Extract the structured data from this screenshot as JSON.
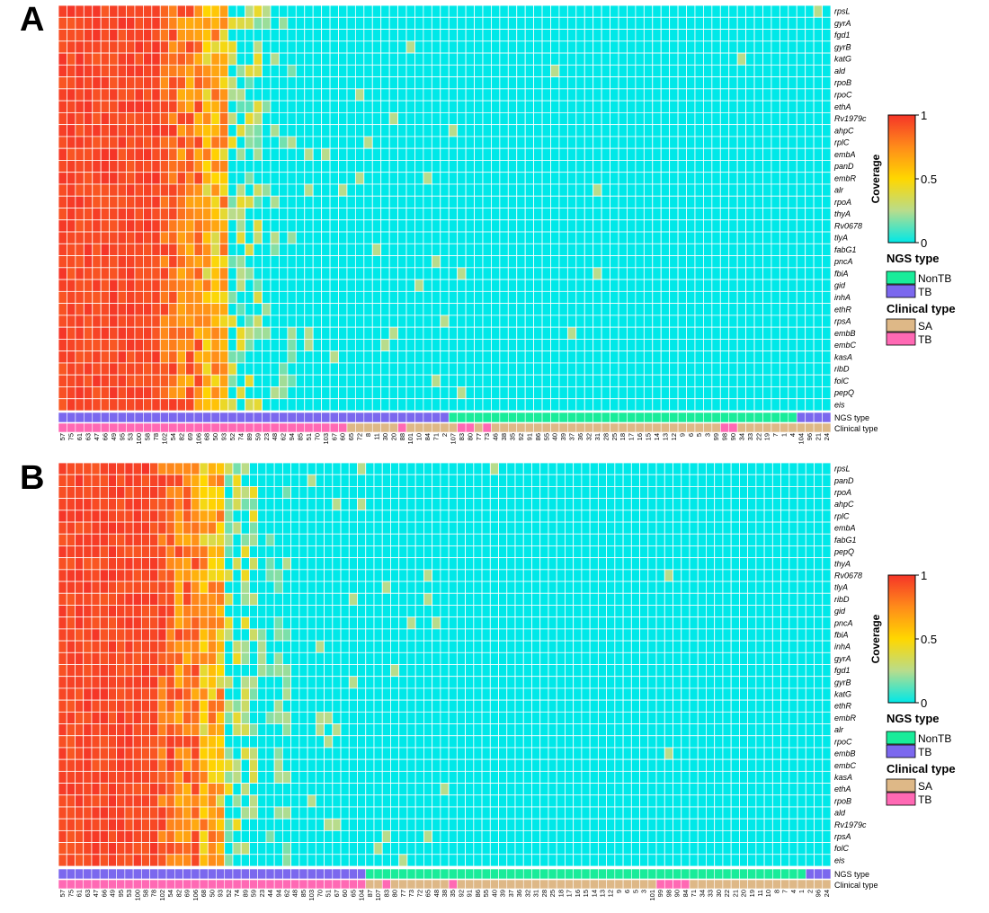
{
  "colors": {
    "coverage_gradient": [
      "#00e8e8",
      "#b8dc8c",
      "#ffd700",
      "#ff8c1a",
      "#f53528"
    ],
    "grid_line": "#ffffff",
    "track": {
      "NonTB": "#19ec9a",
      "TB": "#7b68ee",
      "SA": "#deb887",
      "ClinTB": "#ff69b4"
    }
  },
  "chart_data": [
    {
      "type": "heatmap",
      "panel": "A",
      "genes": [
        "rpsL",
        "gyrA",
        "fgd1",
        "gyrB",
        "katG",
        "ald",
        "rpoB",
        "rpoC",
        "ethA",
        "Rv1979c",
        "ahpC",
        "rplC",
        "embA",
        "panD",
        "embR",
        "alr",
        "rpoA",
        "thyA",
        "Rv0678",
        "tlyA",
        "fabG1",
        "pncA",
        "fbiA",
        "gid",
        "inhA",
        "ethR",
        "rpsA",
        "embB",
        "embC",
        "kasA",
        "ribD",
        "folC",
        "pepQ",
        "eis"
      ],
      "samples": [
        "57",
        "75",
        "61",
        "63",
        "47",
        "66",
        "49",
        "95",
        "53",
        "100",
        "58",
        "78",
        "102",
        "54",
        "82",
        "69",
        "106",
        "68",
        "50",
        "93",
        "52",
        "74",
        "89",
        "59",
        "23",
        "48",
        "62",
        "94",
        "85",
        "51",
        "70",
        "103",
        "67",
        "60",
        "65",
        "72",
        "8",
        "11",
        "30",
        "20",
        "88",
        "101",
        "10",
        "84",
        "71",
        "2",
        "107",
        "83",
        "80",
        "77",
        "73",
        "46",
        "38",
        "35",
        "92",
        "91",
        "86",
        "55",
        "40",
        "39",
        "37",
        "36",
        "32",
        "31",
        "28",
        "25",
        "18",
        "17",
        "16",
        "15",
        "14",
        "13",
        "12",
        "9",
        "6",
        "5",
        "3",
        "99",
        "98",
        "90",
        "34",
        "33",
        "22",
        "19",
        "7",
        "1",
        "4",
        "104",
        "96",
        "21",
        "24"
      ],
      "ngs_type": [
        "TB",
        "TB",
        "TB",
        "TB",
        "TB",
        "TB",
        "TB",
        "TB",
        "TB",
        "TB",
        "TB",
        "TB",
        "TB",
        "TB",
        "TB",
        "TB",
        "TB",
        "TB",
        "TB",
        "TB",
        "TB",
        "TB",
        "TB",
        "TB",
        "TB",
        "TB",
        "TB",
        "TB",
        "TB",
        "TB",
        "TB",
        "TB",
        "TB",
        "TB",
        "TB",
        "TB",
        "TB",
        "TB",
        "TB",
        "TB",
        "TB",
        "TB",
        "TB",
        "TB",
        "TB",
        "TB",
        "NonTB",
        "NonTB",
        "NonTB",
        "NonTB",
        "NonTB",
        "NonTB",
        "NonTB",
        "NonTB",
        "NonTB",
        "NonTB",
        "NonTB",
        "NonTB",
        "NonTB",
        "NonTB",
        "NonTB",
        "NonTB",
        "NonTB",
        "NonTB",
        "NonTB",
        "NonTB",
        "NonTB",
        "NonTB",
        "NonTB",
        "NonTB",
        "NonTB",
        "NonTB",
        "NonTB",
        "NonTB",
        "NonTB",
        "NonTB",
        "NonTB",
        "NonTB",
        "NonTB",
        "NonTB",
        "NonTB",
        "NonTB",
        "NonTB",
        "NonTB",
        "NonTB",
        "NonTB",
        "NonTB",
        "TB",
        "TB",
        "TB",
        "TB"
      ],
      "clinical_type": [
        "TB",
        "TB",
        "TB",
        "TB",
        "TB",
        "TB",
        "TB",
        "TB",
        "TB",
        "TB",
        "TB",
        "TB",
        "TB",
        "TB",
        "TB",
        "TB",
        "TB",
        "TB",
        "TB",
        "TB",
        "TB",
        "TB",
        "TB",
        "TB",
        "TB",
        "TB",
        "TB",
        "TB",
        "TB",
        "TB",
        "TB",
        "TB",
        "TB",
        "TB",
        "SA",
        "SA",
        "SA",
        "SA",
        "SA",
        "SA",
        "TB",
        "SA",
        "SA",
        "SA",
        "SA",
        "SA",
        "SA",
        "TB",
        "TB",
        "SA",
        "TB",
        "SA",
        "SA",
        "SA",
        "SA",
        "SA",
        "SA",
        "SA",
        "SA",
        "SA",
        "SA",
        "SA",
        "SA",
        "SA",
        "SA",
        "SA",
        "SA",
        "SA",
        "SA",
        "SA",
        "SA",
        "SA",
        "SA",
        "SA",
        "SA",
        "SA",
        "SA",
        "SA",
        "TB",
        "TB",
        "SA",
        "SA",
        "SA",
        "SA",
        "SA",
        "SA",
        "SA",
        "SA",
        "SA",
        "SA",
        "SA"
      ],
      "track_labels": [
        "NGS  type",
        "Clinical  type"
      ],
      "value_range": [
        0,
        1
      ]
    },
    {
      "type": "heatmap",
      "panel": "B",
      "genes": [
        "rpsL",
        "panD",
        "rpoA",
        "ahpC",
        "rplC",
        "embA",
        "fabG1",
        "pepQ",
        "thyA",
        "Rv0678",
        "tlyA",
        "ribD",
        "gid",
        "pncA",
        "fbiA",
        "inhA",
        "gyrA",
        "fgd1",
        "gyrB",
        "katG",
        "ethR",
        "embR",
        "alr",
        "rpoC",
        "embB",
        "embC",
        "kasA",
        "ethA",
        "rpoB",
        "ald",
        "Rv1979c",
        "rpsA",
        "folC",
        "eis"
      ],
      "samples": [
        "57",
        "75",
        "61",
        "63",
        "47",
        "66",
        "49",
        "95",
        "53",
        "100",
        "58",
        "78",
        "102",
        "54",
        "82",
        "69",
        "106",
        "68",
        "50",
        "93",
        "52",
        "74",
        "89",
        "59",
        "23",
        "44",
        "94",
        "62",
        "48",
        "85",
        "103",
        "70",
        "51",
        "67",
        "60",
        "65",
        "104",
        "87",
        "107",
        "83",
        "80",
        "77",
        "73",
        "72",
        "65",
        "48",
        "38",
        "35",
        "92",
        "91",
        "86",
        "55",
        "40",
        "39",
        "37",
        "36",
        "32",
        "31",
        "28",
        "25",
        "18",
        "17",
        "16",
        "15",
        "14",
        "13",
        "12",
        "9",
        "6",
        "5",
        "3",
        "101",
        "99",
        "98",
        "90",
        "84",
        "71",
        "34",
        "33",
        "30",
        "22",
        "21",
        "20",
        "19",
        "11",
        "10",
        "8",
        "7",
        "4",
        "1",
        "2",
        "96",
        "24"
      ],
      "ngs_type": [
        "TB",
        "TB",
        "TB",
        "TB",
        "TB",
        "TB",
        "TB",
        "TB",
        "TB",
        "TB",
        "TB",
        "TB",
        "TB",
        "TB",
        "TB",
        "TB",
        "TB",
        "TB",
        "TB",
        "TB",
        "TB",
        "TB",
        "TB",
        "TB",
        "TB",
        "TB",
        "TB",
        "TB",
        "TB",
        "TB",
        "TB",
        "TB",
        "TB",
        "TB",
        "TB",
        "TB",
        "TB",
        "NonTB",
        "NonTB",
        "NonTB",
        "NonTB",
        "NonTB",
        "NonTB",
        "NonTB",
        "NonTB",
        "NonTB",
        "NonTB",
        "NonTB",
        "NonTB",
        "NonTB",
        "NonTB",
        "NonTB",
        "NonTB",
        "NonTB",
        "NonTB",
        "NonTB",
        "NonTB",
        "NonTB",
        "NonTB",
        "NonTB",
        "NonTB",
        "NonTB",
        "NonTB",
        "NonTB",
        "NonTB",
        "NonTB",
        "NonTB",
        "NonTB",
        "NonTB",
        "NonTB",
        "NonTB",
        "NonTB",
        "NonTB",
        "NonTB",
        "NonTB",
        "NonTB",
        "NonTB",
        "NonTB",
        "NonTB",
        "NonTB",
        "NonTB",
        "NonTB",
        "NonTB",
        "NonTB",
        "NonTB",
        "NonTB",
        "NonTB",
        "NonTB",
        "NonTB",
        "NonTB",
        "TB",
        "TB",
        "TB"
      ],
      "clinical_type": [
        "TB",
        "TB",
        "TB",
        "TB",
        "TB",
        "TB",
        "TB",
        "TB",
        "TB",
        "TB",
        "TB",
        "TB",
        "TB",
        "TB",
        "TB",
        "TB",
        "TB",
        "TB",
        "TB",
        "TB",
        "TB",
        "TB",
        "TB",
        "TB",
        "TB",
        "TB",
        "TB",
        "TB",
        "TB",
        "TB",
        "TB",
        "TB",
        "TB",
        "TB",
        "TB",
        "TB",
        "TB",
        "SA",
        "SA",
        "TB",
        "SA",
        "SA",
        "SA",
        "SA",
        "SA",
        "SA",
        "SA",
        "TB",
        "SA",
        "SA",
        "SA",
        "SA",
        "SA",
        "SA",
        "SA",
        "SA",
        "SA",
        "SA",
        "SA",
        "SA",
        "SA",
        "SA",
        "SA",
        "SA",
        "SA",
        "SA",
        "SA",
        "SA",
        "SA",
        "SA",
        "SA",
        "SA",
        "TB",
        "TB",
        "TB",
        "TB",
        "SA",
        "SA",
        "SA",
        "SA",
        "SA",
        "SA",
        "SA",
        "SA",
        "SA",
        "SA",
        "SA",
        "SA",
        "SA",
        "SA",
        "SA",
        "SA",
        "SA"
      ],
      "track_labels": [
        "NGS  type",
        "Clinical  type"
      ],
      "value_range": [
        0,
        1
      ]
    }
  ],
  "legend": {
    "colorbar_title": "Coverage",
    "colorbar_ticks": [
      "1",
      "0.5",
      "0"
    ],
    "ngs_title": "NGS  type",
    "ngs_items": [
      "NonTB",
      "TB"
    ],
    "clinical_title": "Clinical  type",
    "clinical_items": [
      "SA",
      "TB"
    ]
  }
}
